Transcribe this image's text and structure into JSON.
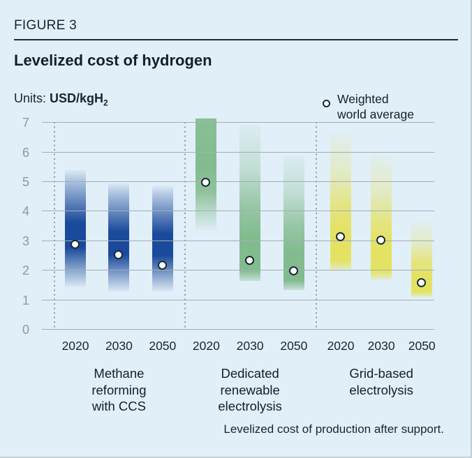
{
  "figure": {
    "label": "FIGURE 3",
    "title": "Levelized cost of hydrogen",
    "footnote": "Levelized cost of production after support."
  },
  "units": {
    "label": "Units:",
    "value": "USD/kgH",
    "subscript": "2"
  },
  "legend": {
    "line1": "Weighted",
    "line2": "world average"
  },
  "colors": {
    "background": "#e1eff8",
    "text": "#10212b",
    "axis_labels": "#8b99a3",
    "gridline": "#a3aeb6",
    "methane_blue": "#1a4a9b",
    "renewable_green": "#82bb8e",
    "grid_yellow": "#e4e263",
    "marker_fill": "#fcfeff",
    "marker_border": "#1b2a33"
  },
  "chart_data": {
    "type": "bar",
    "subtype": "floating-range-bars-with-average-point",
    "title": "Levelized cost of hydrogen",
    "ylabel": "USD/kgH2",
    "xlabel": "",
    "ylim": [
      0,
      7
    ],
    "yticks": [
      0,
      1,
      2,
      3,
      4,
      5,
      6,
      7
    ],
    "grid": true,
    "legend_entries": [
      "Weighted world average"
    ],
    "legend_position": "top-right",
    "separator_fractions": [
      0.03,
      0.363,
      0.698
    ],
    "group_bounds_fractions": [
      [
        0.03,
        0.363
      ],
      [
        0.363,
        0.698
      ],
      [
        0.71,
        1.02
      ]
    ],
    "groups": [
      {
        "key": "methane-reforming-with-ccs",
        "label": "Methane reforming with CCS",
        "label_lines": [
          "Methane",
          "reforming",
          "with CCS"
        ],
        "color": "#1a4a9b",
        "bars": [
          {
            "year": "2020",
            "range": [
              1.45,
              5.4
            ],
            "weighted_world_average": 2.9,
            "shade": "center"
          },
          {
            "year": "2030",
            "range": [
              1.3,
              4.95
            ],
            "weighted_world_average": 2.55,
            "shade": "center"
          },
          {
            "year": "2050",
            "range": [
              1.3,
              4.85
            ],
            "weighted_world_average": 2.2,
            "shade": "center"
          }
        ]
      },
      {
        "key": "dedicated-renewable-electrolysis",
        "label": "Dedicated renewable electrolysis",
        "label_lines": [
          "Dedicated",
          "renewable",
          "electrolysis"
        ],
        "color": "#82bb8e",
        "bars": [
          {
            "year": "2020",
            "range": [
              3.35,
              7.15
            ],
            "weighted_world_average": 5.0,
            "shade": "upper"
          },
          {
            "year": "2030",
            "range": [
              1.65,
              6.9
            ],
            "weighted_world_average": 2.35,
            "shade": "lower"
          },
          {
            "year": "2050",
            "range": [
              1.35,
              5.9
            ],
            "weighted_world_average": 2.0,
            "shade": "lower"
          }
        ]
      },
      {
        "key": "grid-based-electrolysis",
        "label": "Grid-based electrolysis",
        "label_lines": [
          "Grid-based",
          "electrolysis"
        ],
        "color": "#e4e263",
        "bars": [
          {
            "year": "2020",
            "range": [
              2.0,
              6.65
            ],
            "weighted_world_average": 3.15,
            "shade": "lower"
          },
          {
            "year": "2030",
            "range": [
              1.7,
              5.9
            ],
            "weighted_world_average": 3.05,
            "shade": "lower"
          },
          {
            "year": "2050",
            "range": [
              1.1,
              3.65
            ],
            "weighted_world_average": 1.6,
            "shade": "lower"
          }
        ]
      }
    ]
  }
}
